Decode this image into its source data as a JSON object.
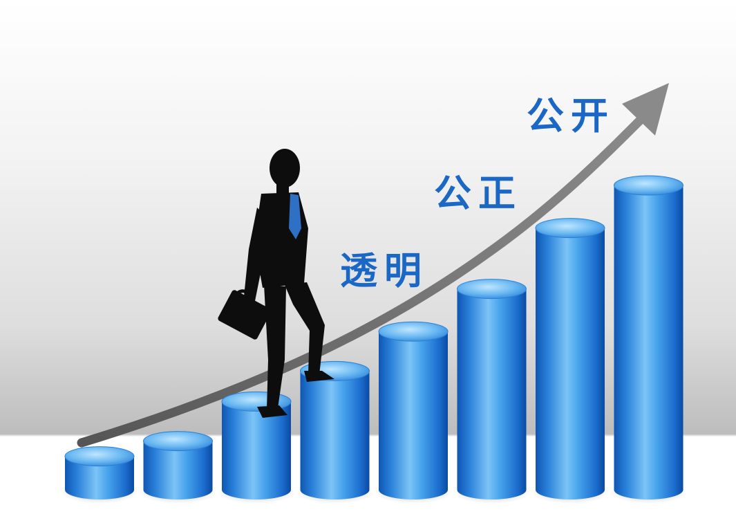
{
  "words": {
    "transparent": "透明",
    "fair": "公正",
    "open": "公开"
  },
  "colors": {
    "text_blue": "#1b67c6",
    "bar_blue": "#2f8fe0",
    "arrow_gray": "#707070",
    "silhouette": "#0d0d0d"
  },
  "bars": {
    "count": 8,
    "relative_heights": [
      0.11,
      0.16,
      0.29,
      0.39,
      0.52,
      0.66,
      0.86,
      1.0
    ]
  }
}
